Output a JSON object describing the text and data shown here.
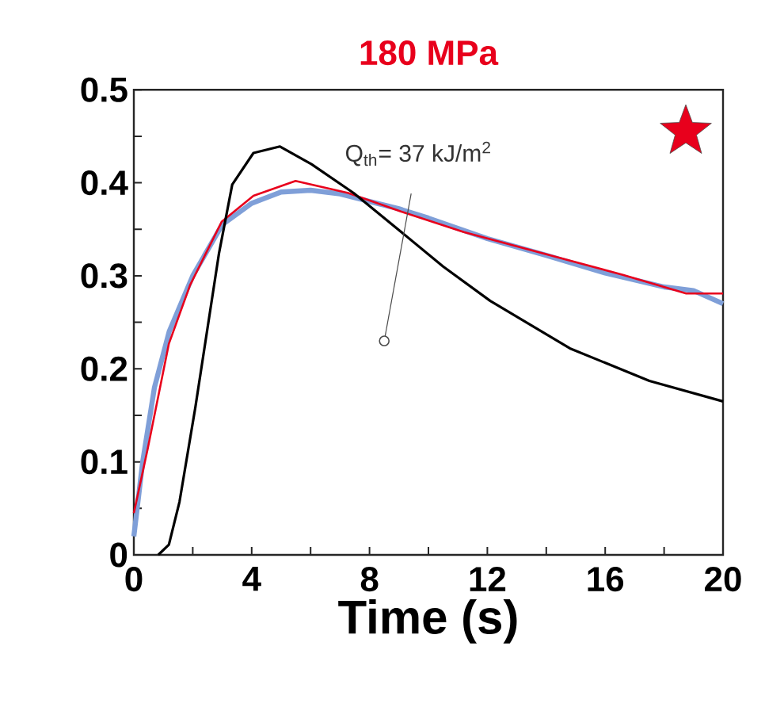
{
  "chart_data": {
    "type": "line",
    "title": "180 MPa",
    "xlabel": "Time (s)",
    "xlim": [
      0,
      20
    ],
    "ylim": [
      0,
      0.5
    ],
    "xticks": [
      0,
      {
        "value": 2,
        "label": null
      },
      4,
      {
        "value": 6,
        "label": null
      },
      8,
      {
        "value": 10,
        "label": null
      },
      12,
      {
        "value": 14,
        "label": null
      },
      16,
      {
        "value": 18,
        "label": null
      },
      20
    ],
    "yticks": [
      0,
      {
        "value": 0.05,
        "label": null
      },
      0.1,
      {
        "value": 0.15,
        "label": null
      },
      0.2,
      {
        "value": 0.25,
        "label": null
      },
      0.3,
      {
        "value": 0.35,
        "label": null
      },
      0.4,
      {
        "value": 0.45,
        "label": null
      },
      0.5
    ],
    "series": [
      {
        "color": "#7f9fd8",
        "x": [
          0,
          0.3,
          0.7,
          1.2,
          2,
          3,
          4,
          5,
          6,
          7,
          8,
          9,
          10,
          12,
          14,
          16,
          18,
          19,
          20
        ],
        "values": [
          0.02,
          0.1,
          0.18,
          0.24,
          0.3,
          0.355,
          0.378,
          0.39,
          0.392,
          0.388,
          0.38,
          0.372,
          0.362,
          0.34,
          0.322,
          0.303,
          0.288,
          0.284,
          0.27
        ]
      },
      {
        "color": "#e8001c",
        "x": [
          0,
          0.47,
          1.19,
          1.91,
          2.98,
          4.06,
          5.49,
          7.28,
          9.08,
          11.2,
          13.9,
          16.6,
          18.75,
          20
        ],
        "values": [
          0.045,
          0.114,
          0.227,
          0.29,
          0.358,
          0.386,
          0.402,
          0.389,
          0.369,
          0.347,
          0.324,
          0.301,
          0.281,
          0.281
        ]
      },
      {
        "color": "#000000",
        "x": [
          0.83,
          1.19,
          1.55,
          2.09,
          2.89,
          3.34,
          4.06,
          4.96,
          6.03,
          7.46,
          9.08,
          10.5,
          12.1,
          14.8,
          17.5,
          20
        ],
        "values": [
          0,
          0.011,
          0.057,
          0.159,
          0.324,
          0.398,
          0.432,
          0.439,
          0.42,
          0.389,
          0.347,
          0.31,
          0.273,
          0.222,
          0.187,
          0.165
        ]
      }
    ],
    "annotations": [
      {
        "text": "Q$_{th}$= 37 kJ/m$^{2}$",
        "x": 8.5,
        "y": 0.23
      }
    ]
  }
}
